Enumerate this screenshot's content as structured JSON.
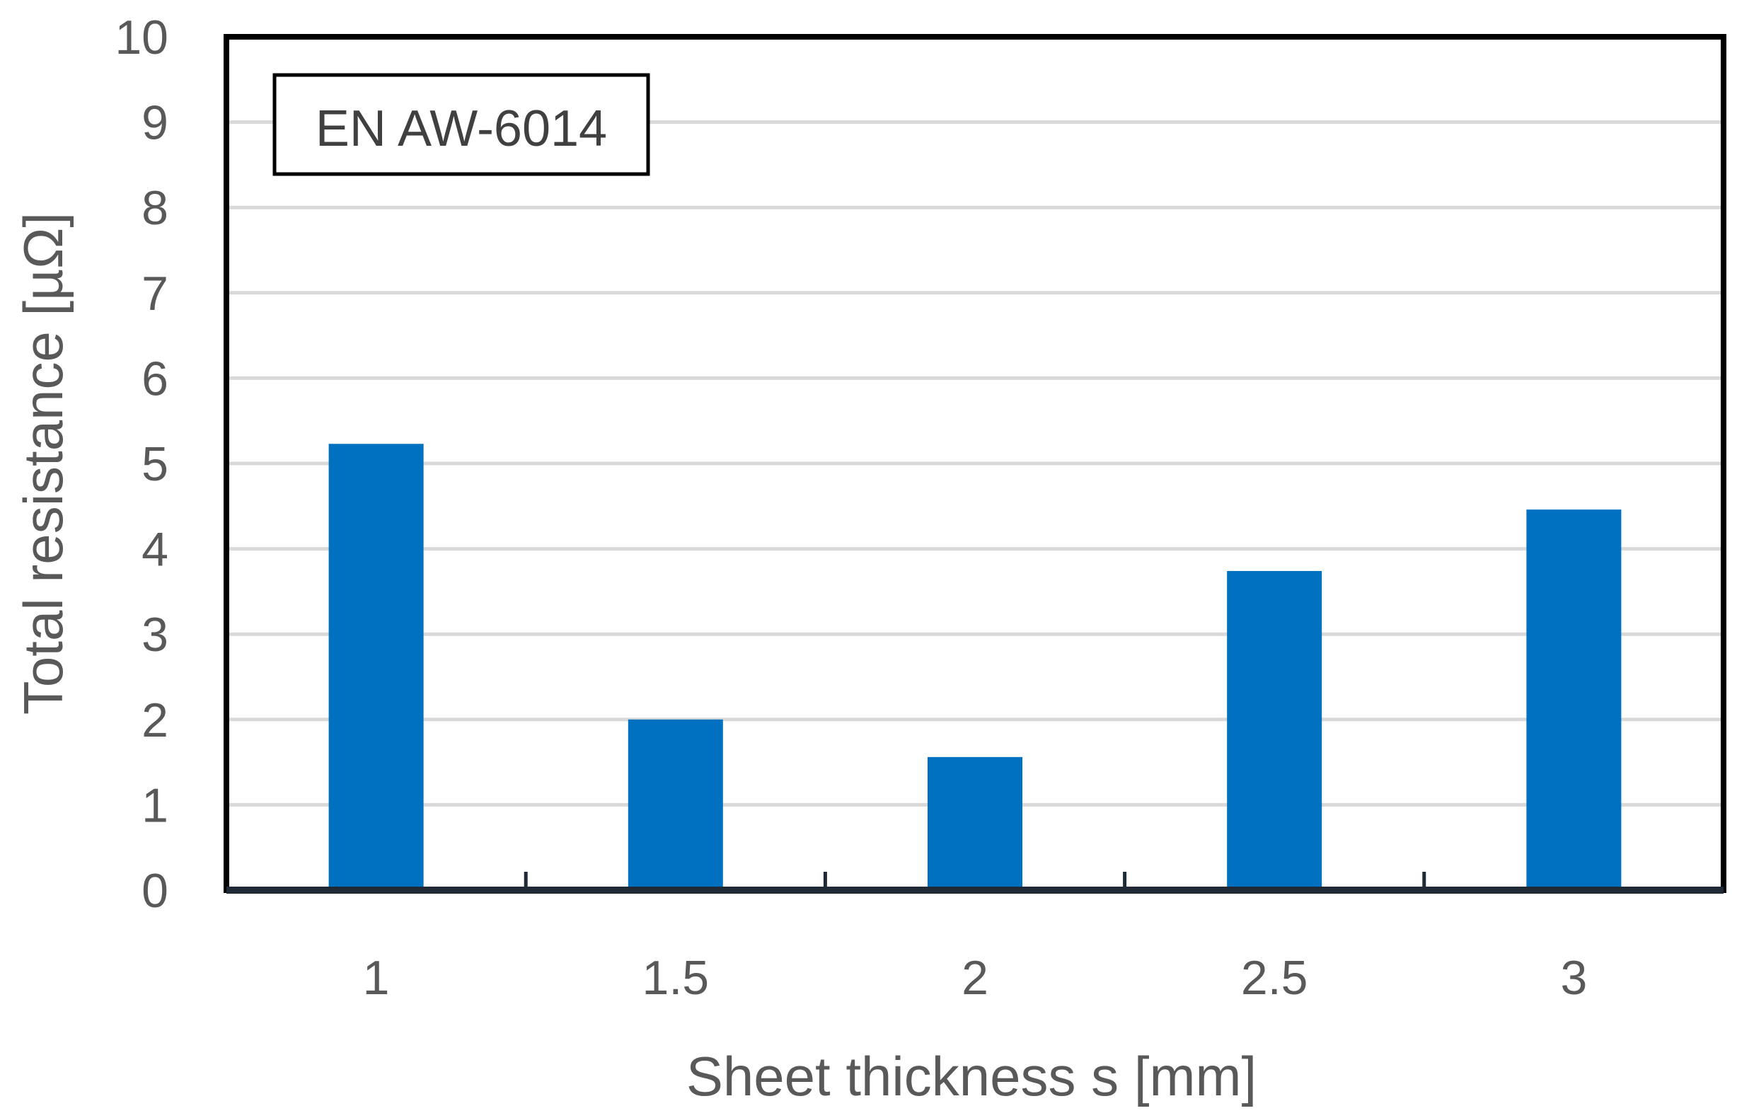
{
  "chart_data": {
    "type": "bar",
    "title": "",
    "xlabel": "Sheet thickness s [mm]",
    "ylabel": "Total resistance [µΩ]",
    "categories": [
      "1",
      "1.5",
      "2",
      "2.5",
      "3"
    ],
    "values": [
      5.23,
      2.0,
      1.56,
      3.74,
      4.46
    ],
    "ylim": [
      0,
      10
    ],
    "yticks": [
      "0",
      "1",
      "2",
      "3",
      "4",
      "5",
      "6",
      "7",
      "8",
      "9",
      "10"
    ],
    "grid": true,
    "annotation": "EN AW-6014",
    "annotation_position": "top-left",
    "colors": {
      "bar": "#0070C0",
      "grid": "#D9D9D9",
      "frame": "#000000",
      "text": "#595959"
    }
  }
}
